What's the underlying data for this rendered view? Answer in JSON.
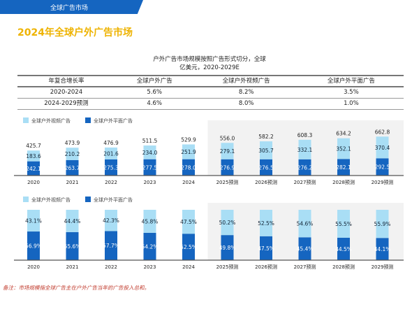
{
  "header": {
    "section": "全球广告市场",
    "title": "2024年全球户外广告市场"
  },
  "chart_title": [
    "户外广告市场规模按照广告形式切分，全球",
    "亿美元，2020-2029E"
  ],
  "cagr_table": {
    "headers": [
      "年复合增长率",
      "全球户外广告",
      "全球户外视频广告",
      "全球户外平面广告"
    ],
    "rows": [
      [
        "2020-2024",
        "5.6%",
        "8.2%",
        "3.5%"
      ],
      [
        "2024-2029预测",
        "4.6%",
        "8.0%",
        "1.0%"
      ]
    ]
  },
  "colors": {
    "video": "#a9def5",
    "print": "#1565c0",
    "forecast_bg": "#f2f2f2"
  },
  "chart_data": [
    {
      "type": "bar",
      "stacked": true,
      "unit": "亿美元",
      "categories": [
        "2020",
        "2021",
        "2022",
        "2023",
        "2024",
        "2025预测",
        "2026预测",
        "2027预测",
        "2028预测",
        "2029预测"
      ],
      "series": [
        {
          "name": "全球户外平面广告",
          "values": [
            242.1,
            263.7,
            275.3,
            277.5,
            278.0,
            276.9,
            276.5,
            276.2,
            282.1,
            292.5
          ]
        },
        {
          "name": "全球户外视频广告",
          "values": [
            183.6,
            210.2,
            201.6,
            234.0,
            251.9,
            279.1,
            305.7,
            332.1,
            352.1,
            370.4
          ]
        }
      ],
      "totals": [
        "425.7",
        "473.9",
        "476.9",
        "511.5",
        "529.9",
        "556.0",
        "582.2",
        "608.3",
        "634.2",
        "662.8"
      ],
      "legend": "top-left",
      "forecast_shaded_from": "2025预测"
    },
    {
      "type": "bar",
      "stacked": true,
      "percent": true,
      "categories": [
        "2020",
        "2021",
        "2022",
        "2023",
        "2024",
        "2025预测",
        "2026预测",
        "2027预测",
        "2028预测",
        "2029预测"
      ],
      "series": [
        {
          "name": "全球户外平面广告",
          "values": [
            56.9,
            55.6,
            57.7,
            54.2,
            52.5,
            49.8,
            47.5,
            45.4,
            44.5,
            44.1
          ]
        },
        {
          "name": "全球户外视频广告",
          "values": [
            43.1,
            44.4,
            42.3,
            45.8,
            47.5,
            50.2,
            52.5,
            54.6,
            55.5,
            55.9
          ]
        }
      ],
      "legend": "top-left",
      "forecast_shaded_from": "2025预测"
    }
  ],
  "footnote": "备注：市场规模指全球广告主在户外广告当年的广告投入总和。"
}
